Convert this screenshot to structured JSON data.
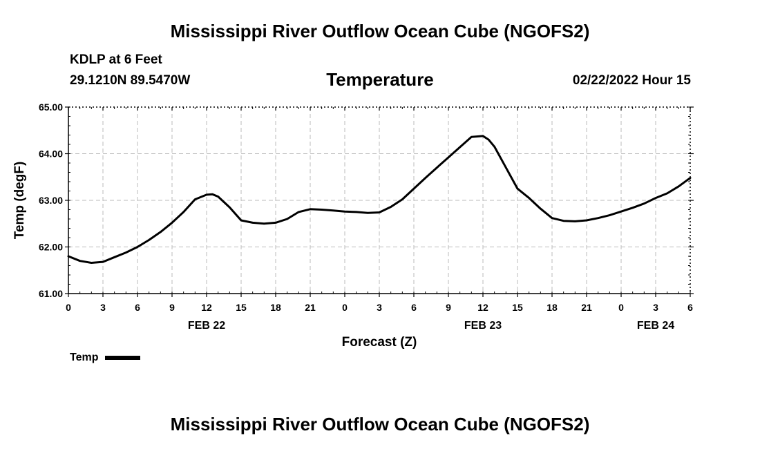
{
  "header": {
    "main_title": "Mississippi River Outflow Ocean Cube (NGOFS2)",
    "station": "KDLP at 6 Feet",
    "coords": "29.1210N  89.5470W",
    "chart_title": "Temperature",
    "datetime": "02/22/2022 Hour 15"
  },
  "footer": {
    "title": "Mississippi River Outflow Ocean Cube (NGOFS2)"
  },
  "legend": {
    "label": "Temp"
  },
  "colors": {
    "line": "#000000",
    "grid": "#bbbbbb"
  },
  "chart_data": {
    "type": "line",
    "title": "Temperature",
    "xlabel": "Forecast (Z)",
    "ylabel": "Temp (degF)",
    "ylim": [
      61,
      65
    ],
    "xlim": [
      0,
      54
    ],
    "yticks": [
      "61.00",
      "62.00",
      "63.00",
      "64.00",
      "65.00"
    ],
    "xticks": [
      "0",
      "3",
      "6",
      "9",
      "12",
      "15",
      "18",
      "21",
      "0",
      "3",
      "6",
      "9",
      "12",
      "15",
      "18",
      "21",
      "0",
      "3",
      "6"
    ],
    "date_labels": [
      {
        "label": "FEB 22",
        "x": 12
      },
      {
        "label": "FEB 23",
        "x": 36
      },
      {
        "label": "FEB 24",
        "x": 51
      }
    ],
    "grid": true,
    "series": [
      {
        "name": "Temp",
        "x": [
          0,
          1,
          2,
          3,
          4,
          5,
          6,
          7,
          8,
          9,
          10,
          11,
          12,
          12.5,
          13,
          14,
          15,
          16,
          17,
          18,
          19,
          20,
          21,
          22,
          23,
          24,
          25,
          26,
          27,
          28,
          29,
          30,
          31,
          32,
          33,
          34,
          35,
          36,
          36.5,
          37,
          38,
          39,
          40,
          41,
          42,
          43,
          44,
          45,
          46,
          47,
          48,
          49,
          50,
          51,
          52,
          53,
          54
        ],
        "values": [
          61.8,
          61.7,
          61.66,
          61.68,
          61.78,
          61.88,
          62.0,
          62.15,
          62.32,
          62.52,
          62.75,
          63.02,
          63.12,
          63.13,
          63.08,
          62.85,
          62.57,
          62.52,
          62.5,
          62.52,
          62.6,
          62.75,
          62.81,
          62.8,
          62.78,
          62.76,
          62.75,
          62.73,
          62.74,
          62.86,
          63.02,
          63.25,
          63.48,
          63.7,
          63.92,
          64.14,
          64.36,
          64.38,
          64.3,
          64.15,
          63.7,
          63.25,
          63.05,
          62.82,
          62.62,
          62.56,
          62.55,
          62.57,
          62.62,
          62.68,
          62.76,
          62.84,
          62.93,
          63.05,
          63.15,
          63.3,
          63.48
        ]
      }
    ]
  }
}
